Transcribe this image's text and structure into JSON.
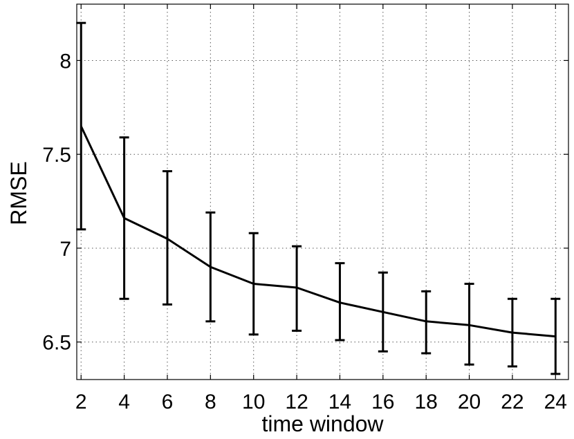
{
  "chart_data": {
    "type": "line",
    "title": "",
    "xlabel": "time window",
    "ylabel": "RMSE",
    "xlim": [
      1.8,
      24.6
    ],
    "ylim": [
      6.3,
      8.3
    ],
    "grid": true,
    "x_ticks": [
      2,
      4,
      6,
      8,
      10,
      12,
      14,
      16,
      18,
      20,
      22,
      24
    ],
    "x_tick_labels": [
      "2",
      "4",
      "6",
      "8",
      "10",
      "12",
      "14",
      "16",
      "18",
      "20",
      "22",
      "24"
    ],
    "y_ticks": [
      6.5,
      7,
      7.5,
      8
    ],
    "y_tick_labels": [
      "6.5",
      "7",
      "7.5",
      "8"
    ],
    "series": [
      {
        "x": [
          2,
          4,
          6,
          8,
          10,
          12,
          14,
          16,
          18,
          20,
          22,
          24
        ],
        "values": [
          7.65,
          7.16,
          7.05,
          6.9,
          6.81,
          6.79,
          6.71,
          6.66,
          6.61,
          6.59,
          6.55,
          6.53
        ],
        "error_upper": [
          8.2,
          7.59,
          7.41,
          7.19,
          7.08,
          7.01,
          6.92,
          6.87,
          6.77,
          6.81,
          6.73,
          6.73
        ],
        "error_lower": [
          7.1,
          6.73,
          6.7,
          6.61,
          6.54,
          6.56,
          6.51,
          6.45,
          6.44,
          6.38,
          6.37,
          6.33
        ],
        "color": "#000000"
      }
    ]
  }
}
